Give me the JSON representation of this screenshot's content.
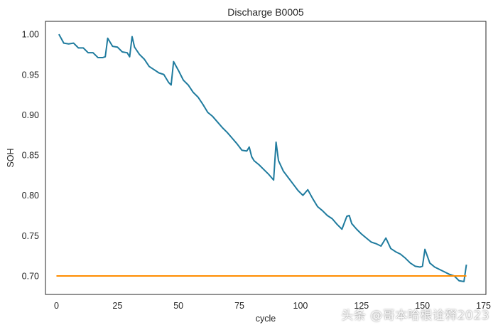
{
  "chart_data": {
    "type": "line",
    "title": "Discharge B0005",
    "xlabel": "cycle",
    "ylabel": "SOH",
    "xlim": [
      -4.5,
      176
    ],
    "ylim": [
      0.677,
      1.016
    ],
    "xticks": [
      0,
      25,
      50,
      75,
      100,
      125,
      150,
      175
    ],
    "yticks": [
      0.7,
      0.75,
      0.8,
      0.85,
      0.9,
      0.95,
      1.0
    ],
    "ytick_labels": [
      "0.70",
      "0.75",
      "0.80",
      "0.85",
      "0.90",
      "0.95",
      "1.00"
    ],
    "grid": false,
    "series": [
      {
        "color": "#1f7b9e",
        "x": [
          1,
          3,
          5,
          7,
          9,
          11,
          13,
          15,
          17,
          19,
          20,
          21,
          23,
          25,
          27,
          29,
          30,
          31,
          32,
          34,
          36,
          38,
          40,
          42,
          44,
          46,
          47,
          48,
          50,
          52,
          54,
          56,
          58,
          60,
          62,
          64,
          66,
          68,
          70,
          72,
          74,
          76,
          78,
          79,
          80,
          81,
          83,
          85,
          87,
          89,
          90,
          91,
          93,
          95,
          97,
          99,
          101,
          103,
          105,
          107,
          109,
          111,
          113,
          115,
          117,
          119,
          120,
          121,
          123,
          125,
          127,
          129,
          131,
          133,
          135,
          137,
          139,
          141,
          143,
          145,
          147,
          149,
          150,
          151,
          153,
          155,
          157,
          159,
          161,
          163,
          165,
          167,
          168
        ],
        "y": [
          1.0,
          0.989,
          0.988,
          0.989,
          0.983,
          0.983,
          0.977,
          0.977,
          0.971,
          0.971,
          0.972,
          0.995,
          0.985,
          0.984,
          0.978,
          0.977,
          0.972,
          0.997,
          0.984,
          0.975,
          0.969,
          0.96,
          0.956,
          0.952,
          0.95,
          0.94,
          0.937,
          0.966,
          0.955,
          0.943,
          0.937,
          0.928,
          0.922,
          0.913,
          0.903,
          0.898,
          0.891,
          0.884,
          0.878,
          0.871,
          0.864,
          0.856,
          0.855,
          0.86,
          0.848,
          0.843,
          0.838,
          0.832,
          0.826,
          0.819,
          0.866,
          0.843,
          0.83,
          0.822,
          0.814,
          0.806,
          0.8,
          0.807,
          0.796,
          0.786,
          0.781,
          0.775,
          0.771,
          0.764,
          0.758,
          0.774,
          0.775,
          0.765,
          0.758,
          0.752,
          0.747,
          0.742,
          0.74,
          0.737,
          0.747,
          0.734,
          0.73,
          0.727,
          0.722,
          0.716,
          0.712,
          0.711,
          0.712,
          0.733,
          0.716,
          0.711,
          0.708,
          0.705,
          0.702,
          0.7,
          0.694,
          0.693,
          0.714
        ]
      },
      {
        "color": "#ff8c00",
        "x": [
          0,
          168
        ],
        "y": [
          0.7,
          0.7
        ]
      }
    ]
  }
}
